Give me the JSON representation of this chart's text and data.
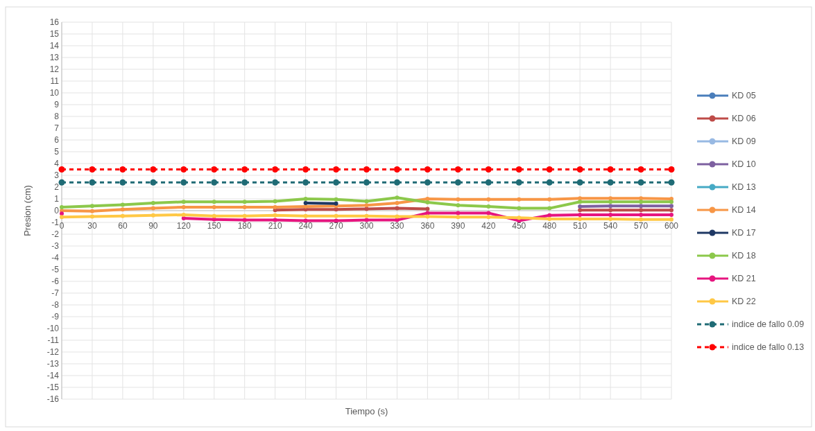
{
  "chart_data": {
    "type": "line",
    "xlabel": "Tiempo (s)",
    "ylabel": "Presion (cm)",
    "x": [
      0,
      30,
      60,
      90,
      120,
      150,
      180,
      210,
      240,
      270,
      300,
      330,
      360,
      390,
      420,
      450,
      480,
      510,
      540,
      570,
      600
    ],
    "xlim": [
      0,
      600
    ],
    "xticks": [
      0,
      30,
      60,
      90,
      120,
      150,
      180,
      210,
      240,
      270,
      300,
      330,
      360,
      390,
      420,
      450,
      480,
      510,
      540,
      570,
      600
    ],
    "ylim": [
      -16,
      16
    ],
    "yticks": [
      -16,
      -15,
      -14,
      -13,
      -12,
      -11,
      -10,
      -9,
      -8,
      -7,
      -6,
      -5,
      -4,
      -3,
      -2,
      -1,
      0,
      1,
      2,
      3,
      4,
      5,
      6,
      7,
      8,
      9,
      10,
      11,
      12,
      13,
      14,
      15,
      16
    ],
    "grid": true,
    "legend": "right",
    "marker": "circle",
    "line_style": "solid",
    "series": [
      {
        "name": "KD 05",
        "color": "#4a7ebb",
        "values": [
          null,
          null,
          null,
          null,
          null,
          null,
          null,
          null,
          null,
          null,
          null,
          null,
          null,
          null,
          null,
          null,
          null,
          null,
          null,
          null,
          null
        ]
      },
      {
        "name": "KD 06",
        "color": "#be4b48",
        "values": [
          null,
          null,
          null,
          null,
          null,
          null,
          null,
          0.05,
          0.1,
          0.1,
          0.15,
          0.2,
          0.15,
          null,
          null,
          null,
          null,
          0.05,
          0.05,
          0.05,
          0.05
        ]
      },
      {
        "name": "KD 09",
        "color": "#98b9e3",
        "values": [
          null,
          null,
          null,
          null,
          null,
          null,
          null,
          null,
          null,
          null,
          null,
          null,
          null,
          null,
          null,
          null,
          null,
          null,
          null,
          null,
          null
        ]
      },
      {
        "name": "KD 10",
        "color": "#7d60a0",
        "values": [
          null,
          null,
          null,
          null,
          null,
          null,
          null,
          null,
          null,
          null,
          null,
          null,
          null,
          null,
          null,
          null,
          null,
          0.35,
          0.4,
          0.4,
          0.4
        ]
      },
      {
        "name": "KD 13",
        "color": "#46aac5",
        "values": [
          null,
          null,
          null,
          null,
          null,
          null,
          null,
          null,
          null,
          null,
          null,
          null,
          null,
          null,
          null,
          null,
          null,
          null,
          null,
          null,
          null
        ]
      },
      {
        "name": "KD 14",
        "color": "#f79646",
        "values": [
          0,
          -0.05,
          0.1,
          0.2,
          0.3,
          0.3,
          0.3,
          0.3,
          0.35,
          0.4,
          0.45,
          0.65,
          1,
          0.95,
          0.95,
          0.95,
          0.95,
          1.05,
          1.05,
          1.05,
          1
        ]
      },
      {
        "name": "KD 17",
        "color": "#1f3864",
        "values": [
          null,
          null,
          null,
          null,
          null,
          null,
          null,
          null,
          0.65,
          0.6,
          null,
          null,
          null,
          null,
          null,
          null,
          null,
          null,
          null,
          null,
          null
        ]
      },
      {
        "name": "KD 18",
        "color": "#8cc84b",
        "values": [
          0.3,
          0.4,
          0.5,
          0.65,
          0.75,
          0.75,
          0.75,
          0.8,
          1,
          0.95,
          0.8,
          1.1,
          0.7,
          0.45,
          0.35,
          0.2,
          0.2,
          0.75,
          0.75,
          0.75,
          0.75
        ]
      },
      {
        "name": "KD 21",
        "color": "#e6157f",
        "values": [
          -0.25,
          null,
          null,
          null,
          -0.65,
          -0.75,
          -0.8,
          -0.8,
          -0.85,
          -0.85,
          -0.8,
          -0.8,
          -0.2,
          -0.2,
          -0.2,
          -0.85,
          -0.4,
          -0.35,
          -0.35,
          -0.35,
          -0.35
        ]
      },
      {
        "name": "KD 22",
        "color": "#ffc845",
        "values": [
          -0.55,
          -0.5,
          -0.45,
          -0.4,
          -0.35,
          -0.45,
          -0.45,
          -0.4,
          -0.45,
          -0.45,
          -0.45,
          -0.5,
          -0.5,
          -0.55,
          -0.55,
          -0.6,
          -0.7,
          -0.7,
          -0.7,
          -0.75,
          -0.75
        ]
      },
      {
        "name": "indice de fallo 0.09",
        "color": "#1f6b75",
        "line_style": "dashed",
        "values": [
          2.4,
          2.4,
          2.4,
          2.4,
          2.4,
          2.4,
          2.4,
          2.4,
          2.4,
          2.4,
          2.4,
          2.4,
          2.4,
          2.4,
          2.4,
          2.4,
          2.4,
          2.4,
          2.4,
          2.4,
          2.4
        ]
      },
      {
        "name": "indice de fallo 0.13",
        "color": "#ff0000",
        "line_style": "dashed",
        "values": [
          3.5,
          3.5,
          3.5,
          3.5,
          3.5,
          3.5,
          3.5,
          3.5,
          3.5,
          3.5,
          3.5,
          3.5,
          3.5,
          3.5,
          3.5,
          3.5,
          3.5,
          3.5,
          3.5,
          3.5,
          3.5
        ]
      }
    ]
  }
}
